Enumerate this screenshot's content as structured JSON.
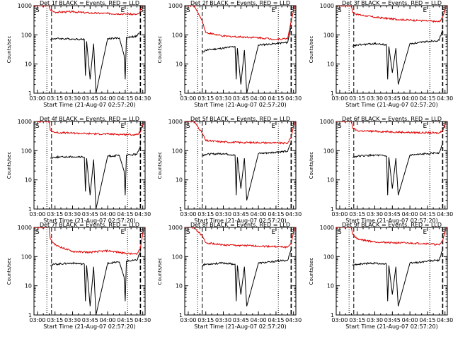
{
  "figure": {
    "background": "#ffffff",
    "events_color": "#000000",
    "lld_color": "#e00000"
  },
  "chart_data": [
    {
      "type": "line",
      "title": "Det 1f BLACK = Events, RED = LLD",
      "ylabel": "Counts/sec",
      "xlabel": "Start Time (21-Aug-07 02:57:20)",
      "x_ticks": [
        "03:00",
        "03:15",
        "03:30",
        "03:45",
        "04:00",
        "04:15",
        "04:30"
      ],
      "y_ticks": [
        "1",
        "10",
        "100",
        "1000"
      ],
      "y_scale": "log",
      "ylim": [
        1,
        1000
      ],
      "markers": [
        "S",
        "E",
        "S"
      ],
      "series": [
        {
          "color": "#e00000",
          "x": [
            "02:57",
            "03:10",
            "03:11",
            "03:15",
            "03:30",
            "03:45",
            "04:00",
            "04:15",
            "04:25",
            "04:27",
            "04:29",
            "04:31"
          ],
          "values": [
            1000,
            1000,
            700,
            600,
            620,
            560,
            540,
            520,
            500,
            540,
            900,
            1000
          ]
        },
        {
          "color": "#000000",
          "x": [
            "03:11",
            "03:15",
            "03:30",
            "03:40",
            "03:41",
            "03:42",
            "03:45",
            "03:48",
            "03:50",
            "04:00",
            "04:10",
            "04:14",
            "04:15",
            "04:16",
            "04:20",
            "04:25",
            "04:27"
          ],
          "values": [
            70,
            75,
            72,
            70,
            4,
            60,
            3,
            50,
            1,
            75,
            78,
            20,
            3,
            80,
            85,
            90,
            120
          ]
        }
      ]
    },
    {
      "type": "line",
      "title": "Det 2f BLACK = Events, RED = LLD",
      "ylabel": "Counts/sec",
      "xlabel": "Start Time (21-Aug-07 02:57:20)",
      "x_ticks": [
        "03:00",
        "03:15",
        "03:30",
        "03:45",
        "04:00",
        "04:15",
        "04:30"
      ],
      "y_ticks": [
        "1",
        "10",
        "100",
        "1000"
      ],
      "y_scale": "log",
      "ylim": [
        1,
        1000
      ],
      "markers": [
        "S",
        "E",
        "S"
      ],
      "series": [
        {
          "color": "#e00000",
          "x": [
            "02:57",
            "03:05",
            "03:12",
            "03:15",
            "03:30",
            "03:45",
            "04:00",
            "04:15",
            "04:25",
            "04:28",
            "04:31"
          ],
          "values": [
            1000,
            1000,
            300,
            120,
            90,
            85,
            80,
            70,
            75,
            300,
            1000
          ]
        },
        {
          "color": "#000000",
          "x": [
            "03:12",
            "03:15",
            "03:30",
            "03:40",
            "03:41",
            "03:42",
            "03:45",
            "03:48",
            "03:50",
            "04:00",
            "04:10",
            "04:15",
            "04:25",
            "04:28"
          ],
          "values": [
            25,
            30,
            35,
            40,
            3,
            35,
            2,
            30,
            1,
            45,
            48,
            50,
            55,
            200
          ]
        }
      ]
    },
    {
      "type": "line",
      "title": "Det 3f BLACK = Events, RED = LLD",
      "ylabel": "Counts/sec",
      "xlabel": "Start Time (21-Aug-07 02:57:20)",
      "x_ticks": [
        "03:00",
        "03:15",
        "03:30",
        "03:45",
        "04:00",
        "04:15",
        "04:30"
      ],
      "y_ticks": [
        "1",
        "10",
        "100",
        "1000"
      ],
      "y_scale": "log",
      "ylim": [
        1,
        1000
      ],
      "markers": [
        "S",
        "E",
        "S"
      ],
      "series": [
        {
          "color": "#e00000",
          "x": [
            "02:57",
            "03:10",
            "03:11",
            "03:15",
            "03:30",
            "03:45",
            "04:00",
            "04:15",
            "04:25",
            "04:28",
            "04:31"
          ],
          "values": [
            1000,
            1000,
            600,
            500,
            400,
            350,
            320,
            300,
            280,
            400,
            1000
          ]
        },
        {
          "color": "#000000",
          "x": [
            "03:11",
            "03:15",
            "03:30",
            "03:40",
            "03:41",
            "03:42",
            "03:45",
            "03:48",
            "03:50",
            "04:00",
            "04:10",
            "04:15",
            "04:25",
            "04:28"
          ],
          "values": [
            40,
            45,
            50,
            45,
            3,
            40,
            5,
            35,
            2,
            50,
            55,
            60,
            65,
            150
          ]
        }
      ]
    },
    {
      "type": "line",
      "title": "Det 4f BLACK = Events, RED = LLD",
      "ylabel": "Counts/sec",
      "xlabel": "Start Time (21-Aug-07 02:57:20)",
      "x_ticks": [
        "03:00",
        "03:15",
        "03:30",
        "03:45",
        "04:00",
        "04:15",
        "04:30"
      ],
      "y_ticks": [
        "1",
        "10",
        "100",
        "1000"
      ],
      "y_scale": "log",
      "ylim": [
        1,
        1000
      ],
      "markers": [
        "S",
        "E",
        "S"
      ],
      "series": [
        {
          "color": "#e00000",
          "x": [
            "02:57",
            "03:10",
            "03:11",
            "03:15",
            "03:30",
            "03:45",
            "04:00",
            "04:15",
            "04:25",
            "04:28",
            "04:31"
          ],
          "values": [
            1000,
            1000,
            500,
            420,
            400,
            380,
            370,
            360,
            350,
            450,
            1000
          ]
        },
        {
          "color": "#000000",
          "x": [
            "03:11",
            "03:15",
            "03:30",
            "03:40",
            "03:41",
            "03:42",
            "03:45",
            "03:48",
            "03:50",
            "04:00",
            "04:10",
            "04:14",
            "04:15",
            "04:16",
            "04:25",
            "04:28"
          ],
          "values": [
            55,
            60,
            62,
            60,
            4,
            55,
            3,
            50,
            1,
            65,
            68,
            20,
            3,
            70,
            75,
            150
          ]
        }
      ]
    },
    {
      "type": "line",
      "title": "Det 5f BLACK = Events, RED = LLD",
      "ylabel": "Counts/sec",
      "xlabel": "Start Time (21-Aug-07 02:57:20)",
      "x_ticks": [
        "03:00",
        "03:15",
        "03:30",
        "03:45",
        "04:00",
        "04:15",
        "04:30"
      ],
      "y_ticks": [
        "1",
        "10",
        "100",
        "1000"
      ],
      "y_scale": "log",
      "ylim": [
        1,
        1000
      ],
      "markers": [
        "S",
        "E",
        "S"
      ],
      "series": [
        {
          "color": "#e00000",
          "x": [
            "02:57",
            "03:05",
            "03:12",
            "03:15",
            "03:30",
            "03:45",
            "04:00",
            "04:15",
            "04:25",
            "04:28",
            "04:31"
          ],
          "values": [
            1000,
            1000,
            400,
            220,
            200,
            190,
            190,
            185,
            180,
            300,
            1000
          ]
        },
        {
          "color": "#000000",
          "x": [
            "03:12",
            "03:15",
            "03:30",
            "03:40",
            "03:41",
            "03:42",
            "03:45",
            "03:48",
            "03:50",
            "04:00",
            "04:10",
            "04:15",
            "04:25",
            "04:28"
          ],
          "values": [
            70,
            75,
            80,
            70,
            3,
            60,
            5,
            55,
            2,
            80,
            85,
            90,
            95,
            200
          ]
        }
      ]
    },
    {
      "type": "line",
      "title": "Det 6f BLACK = Events, RED = LLD",
      "ylabel": "Counts/sec",
      "xlabel": "Start Time (21-Aug-07 02:57:20)",
      "x_ticks": [
        "03:00",
        "03:15",
        "03:30",
        "03:45",
        "04:00",
        "04:15",
        "04:30"
      ],
      "y_ticks": [
        "1",
        "10",
        "100",
        "1000"
      ],
      "y_scale": "log",
      "ylim": [
        1,
        1000
      ],
      "markers": [
        "S",
        "E",
        "S"
      ],
      "series": [
        {
          "color": "#e00000",
          "x": [
            "02:57",
            "03:10",
            "03:11",
            "03:15",
            "03:30",
            "03:45",
            "04:00",
            "04:15",
            "04:25",
            "04:28",
            "04:31"
          ],
          "values": [
            1000,
            1000,
            600,
            480,
            460,
            440,
            420,
            410,
            400,
            500,
            1000
          ]
        },
        {
          "color": "#000000",
          "x": [
            "03:11",
            "03:15",
            "03:30",
            "03:40",
            "03:41",
            "03:42",
            "03:45",
            "03:48",
            "03:50",
            "04:00",
            "04:10",
            "04:15",
            "04:25",
            "04:28"
          ],
          "values": [
            60,
            65,
            70,
            65,
            3,
            60,
            5,
            55,
            3,
            70,
            75,
            80,
            85,
            180
          ]
        }
      ]
    },
    {
      "type": "line",
      "title": "Det 7f BLACK = Events, RED = LLD",
      "ylabel": "Counts/sec",
      "xlabel": "Start Time (21-Aug-07 02:57:20)",
      "x_ticks": [
        "03:00",
        "03:15",
        "03:30",
        "03:45",
        "04:00",
        "04:15",
        "04:30"
      ],
      "y_ticks": [
        "1",
        "10",
        "100",
        "1000"
      ],
      "y_scale": "log",
      "ylim": [
        1,
        1000
      ],
      "markers": [
        "S",
        "E",
        "S"
      ],
      "series": [
        {
          "color": "#e00000",
          "x": [
            "02:57",
            "03:10",
            "03:11",
            "03:15",
            "03:30",
            "03:45",
            "04:00",
            "04:15",
            "04:25",
            "04:28",
            "04:31"
          ],
          "values": [
            1000,
            1000,
            400,
            250,
            150,
            140,
            160,
            130,
            120,
            200,
            1000
          ]
        },
        {
          "color": "#000000",
          "x": [
            "03:11",
            "03:15",
            "03:30",
            "03:40",
            "03:41",
            "03:42",
            "03:45",
            "03:48",
            "03:50",
            "04:00",
            "04:10",
            "04:14",
            "04:15",
            "04:16",
            "04:25",
            "04:28"
          ],
          "values": [
            50,
            55,
            60,
            55,
            3,
            50,
            2,
            45,
            1,
            60,
            65,
            20,
            3,
            70,
            75,
            150
          ]
        }
      ]
    },
    {
      "type": "line",
      "title": "Det 8f BLACK = Events, RED = LLD",
      "ylabel": "Counts/sec",
      "xlabel": "Start Time (21-Aug-07 02:57:20)",
      "x_ticks": [
        "03:00",
        "03:15",
        "03:30",
        "03:45",
        "04:00",
        "04:15",
        "04:30"
      ],
      "y_ticks": [
        "1",
        "10",
        "100",
        "1000"
      ],
      "y_scale": "log",
      "ylim": [
        1,
        1000
      ],
      "markers": [
        "S",
        "E",
        "S"
      ],
      "series": [
        {
          "color": "#e00000",
          "x": [
            "02:57",
            "03:05",
            "03:12",
            "03:15",
            "03:30",
            "03:45",
            "04:00",
            "04:15",
            "04:25",
            "04:28",
            "04:31"
          ],
          "values": [
            1000,
            1000,
            500,
            300,
            250,
            240,
            230,
            220,
            210,
            300,
            1000
          ]
        },
        {
          "color": "#000000",
          "x": [
            "03:12",
            "03:15",
            "03:30",
            "03:40",
            "03:41",
            "03:42",
            "03:45",
            "03:48",
            "03:50",
            "04:00",
            "04:10",
            "04:15",
            "04:25",
            "04:28"
          ],
          "values": [
            50,
            55,
            60,
            55,
            3,
            50,
            5,
            45,
            2,
            60,
            65,
            70,
            75,
            180
          ]
        }
      ]
    },
    {
      "type": "line",
      "title": "Det 9f BLACK = Events, RED = LLD",
      "ylabel": "Counts/sec",
      "xlabel": "Start Time (21-Aug-07 02:57:20)",
      "x_ticks": [
        "03:00",
        "03:15",
        "03:30",
        "03:45",
        "04:00",
        "04:15",
        "04:30"
      ],
      "y_ticks": [
        "1",
        "10",
        "100",
        "1000"
      ],
      "y_scale": "log",
      "ylim": [
        1,
        1000
      ],
      "markers": [
        "S",
        "E",
        "S"
      ],
      "series": [
        {
          "color": "#e00000",
          "x": [
            "02:57",
            "03:10",
            "03:11",
            "03:15",
            "03:30",
            "03:45",
            "04:00",
            "04:15",
            "04:25",
            "04:28",
            "04:31"
          ],
          "values": [
            1000,
            1000,
            600,
            400,
            320,
            300,
            290,
            280,
            250,
            350,
            1000
          ]
        },
        {
          "color": "#000000",
          "x": [
            "03:11",
            "03:15",
            "03:30",
            "03:40",
            "03:41",
            "03:42",
            "03:45",
            "03:48",
            "03:50",
            "04:00",
            "04:10",
            "04:15",
            "04:25",
            "04:28"
          ],
          "values": [
            50,
            55,
            60,
            55,
            3,
            50,
            5,
            45,
            2,
            60,
            65,
            70,
            75,
            180
          ]
        }
      ]
    }
  ]
}
